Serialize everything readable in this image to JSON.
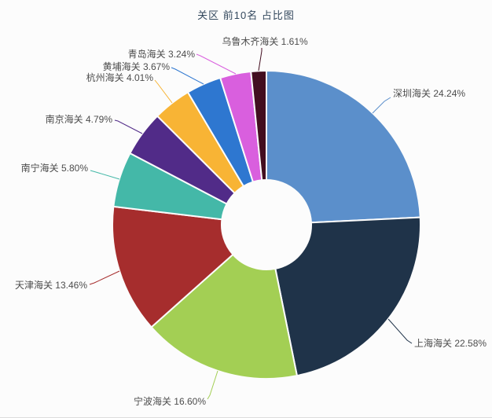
{
  "chart_data": {
    "type": "pie",
    "title": "关区 前10名 占比图",
    "subtype": "donut",
    "legend_position": "none",
    "direction": "clockwise",
    "start_angle": "top",
    "label_format": "name percent%",
    "background_color": "#fcfcfc",
    "slices": [
      {
        "name": "深圳海关",
        "percent": 24.24,
        "color": "#5b8fcb",
        "label": "深圳海关 24.24%"
      },
      {
        "name": "上海海关",
        "percent": 22.58,
        "color": "#1f3349",
        "label": "上海海关 22.58%"
      },
      {
        "name": "宁波海关",
        "percent": 16.6,
        "color": "#a3cf54",
        "label": "宁波海关 16.60%"
      },
      {
        "name": "天津海关",
        "percent": 13.46,
        "color": "#a62d2d",
        "label": "天津海关 13.46%"
      },
      {
        "name": "南宁海关",
        "percent": 5.8,
        "color": "#44b8a8",
        "label": "南宁海关 5.80%"
      },
      {
        "name": "南京海关",
        "percent": 4.79,
        "color": "#512b88",
        "label": "南京海关 4.79%"
      },
      {
        "name": "杭州海关",
        "percent": 4.01,
        "color": "#f8b435",
        "label": "杭州海关 4.01%"
      },
      {
        "name": "黄埔海关",
        "percent": 3.67,
        "color": "#2e77d0",
        "label": "黄埔海关 3.67%"
      },
      {
        "name": "青岛海关",
        "percent": 3.24,
        "color": "#d95fde",
        "label": "青岛海关 3.24%"
      },
      {
        "name": "乌鲁木齐海关",
        "percent": 1.61,
        "color": "#430e20",
        "label": "乌鲁木齐海关 1.61%"
      }
    ]
  }
}
